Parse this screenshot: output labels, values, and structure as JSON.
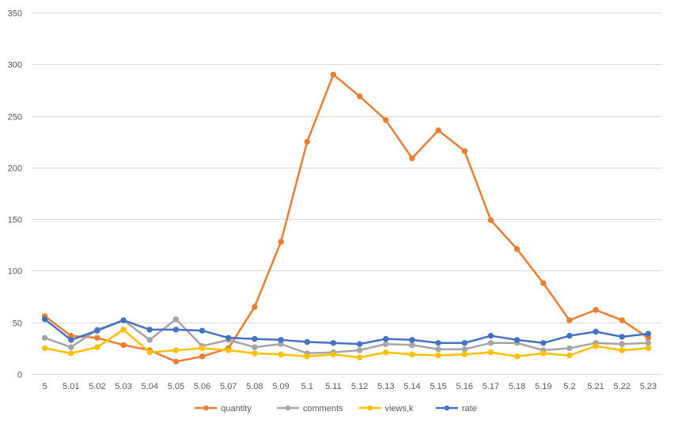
{
  "chart_data": {
    "type": "line",
    "title": "",
    "xlabel": "",
    "ylabel": "",
    "categories": [
      "5",
      "5.01",
      "5.02",
      "5.03",
      "5.04",
      "5.05",
      "5.06",
      "5.07",
      "5.08",
      "5.09",
      "5.1",
      "5.11",
      "5.12",
      "5.13",
      "5.14",
      "5.15",
      "5.16",
      "5.17",
      "5.18",
      "5.19",
      "5.2",
      "5.21",
      "5.22",
      "5.23"
    ],
    "ylim": [
      0,
      350
    ],
    "yticks": [
      "0",
      "50",
      "100",
      "150",
      "200",
      "250",
      "300",
      "350"
    ],
    "grid": "horizontal",
    "legend_position": "bottom",
    "series": [
      {
        "name": "quantity",
        "color": "#ED7D31",
        "values": [
          56,
          37,
          35,
          28,
          23,
          12,
          17,
          25,
          65,
          128,
          225,
          290,
          269,
          246,
          209,
          236,
          216,
          149,
          121,
          88,
          52,
          62,
          52,
          35
        ]
      },
      {
        "name": "comments",
        "color": "#A5A5A5",
        "values": [
          35,
          26,
          43,
          52,
          33,
          53,
          27,
          33,
          26,
          29,
          20,
          21,
          23,
          29,
          28,
          24,
          24,
          30,
          30,
          23,
          25,
          30,
          29,
          30
        ]
      },
      {
        "name": "views,k",
        "color": "#FFC000",
        "values": [
          25,
          20,
          26,
          43,
          21,
          23,
          25,
          23,
          20,
          19,
          17,
          19,
          16,
          21,
          19,
          18,
          19,
          21,
          17,
          20,
          18,
          27,
          23,
          25
        ]
      },
      {
        "name": "rate",
        "color": "#4472C4",
        "values": [
          53,
          33,
          42,
          52,
          43,
          43,
          42,
          35,
          34,
          33,
          31,
          30,
          29,
          34,
          33,
          30,
          30,
          37,
          33,
          30,
          37,
          41,
          36,
          39
        ]
      }
    ]
  }
}
